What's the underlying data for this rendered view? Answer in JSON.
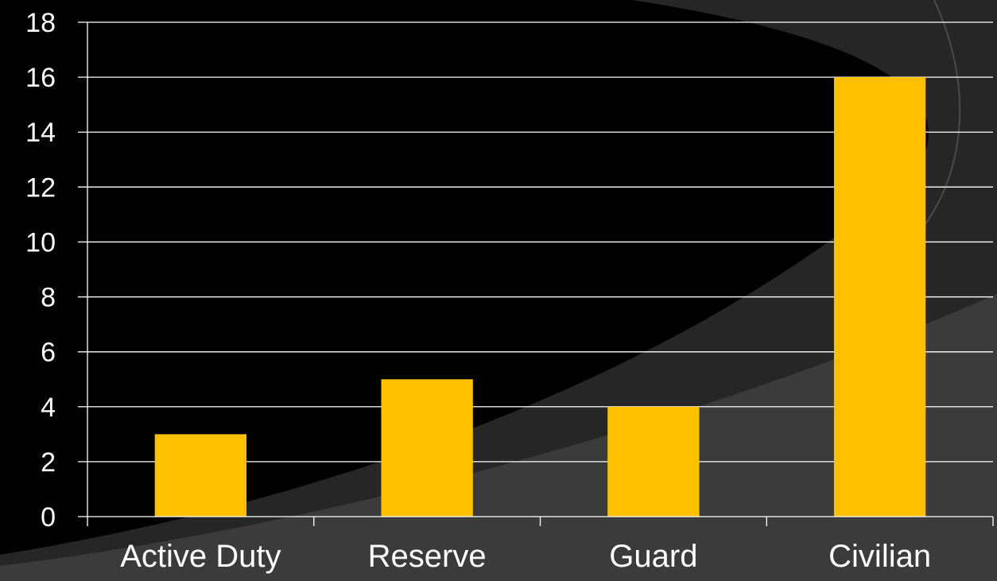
{
  "theme": {
    "background": "#000000",
    "swoosh_dark": "#262626",
    "swoosh_light": "#3b3b3b",
    "bar_color": "#ffc000",
    "gridline_color": "#ffffff",
    "text_color": "#ffffff"
  },
  "chart_data": {
    "type": "bar",
    "categories": [
      "Active Duty",
      "Reserve",
      "Guard",
      "Civilian"
    ],
    "values": [
      3,
      5,
      4,
      16
    ],
    "title": "",
    "xlabel": "",
    "ylabel": "",
    "ylim": [
      0,
      18
    ],
    "yticks": [
      0,
      2,
      4,
      6,
      8,
      10,
      12,
      14,
      16,
      18
    ],
    "grid": true,
    "legend": "none"
  }
}
